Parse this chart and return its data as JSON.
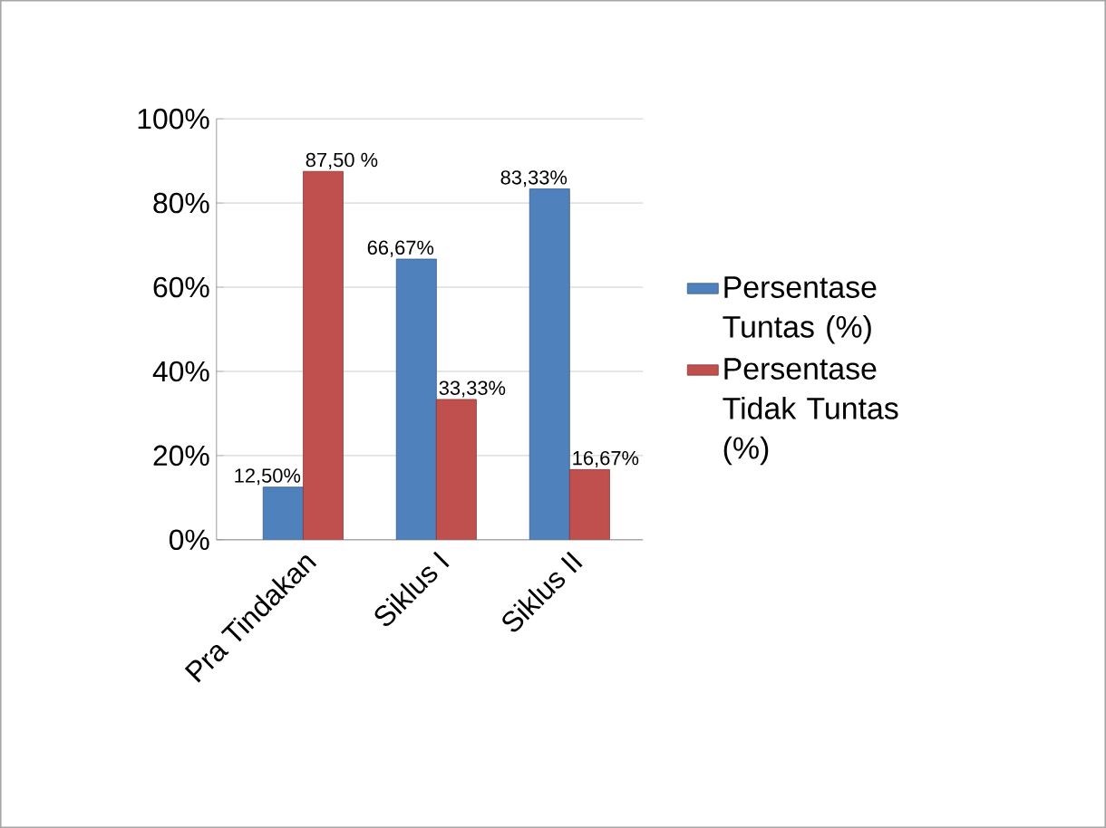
{
  "chart_data": {
    "type": "bar",
    "categories": [
      "Pra Tindakan",
      "Siklus I",
      "Siklus II"
    ],
    "series": [
      {
        "name": "Persentase Tuntas (%)",
        "color": "#4f81bd",
        "values": [
          12.5,
          66.67,
          83.33
        ],
        "value_labels": [
          "12,50%",
          "66,67%",
          "83,33%"
        ]
      },
      {
        "name": "Persentase Tidak  Tuntas (%)",
        "color": "#c0504d",
        "values": [
          87.5,
          33.33,
          16.67
        ],
        "value_labels": [
          "87,50 %",
          "33,33%",
          "16,67%"
        ]
      }
    ],
    "ylim": [
      0,
      100
    ],
    "yticks": [
      {
        "value": 0,
        "label": "0%"
      },
      {
        "value": 20,
        "label": "20%"
      },
      {
        "value": 40,
        "label": "40%"
      },
      {
        "value": 60,
        "label": "60%"
      },
      {
        "value": 80,
        "label": "80%"
      },
      {
        "value": 100,
        "label": "100%"
      }
    ],
    "grid": "y",
    "legend": "right"
  }
}
